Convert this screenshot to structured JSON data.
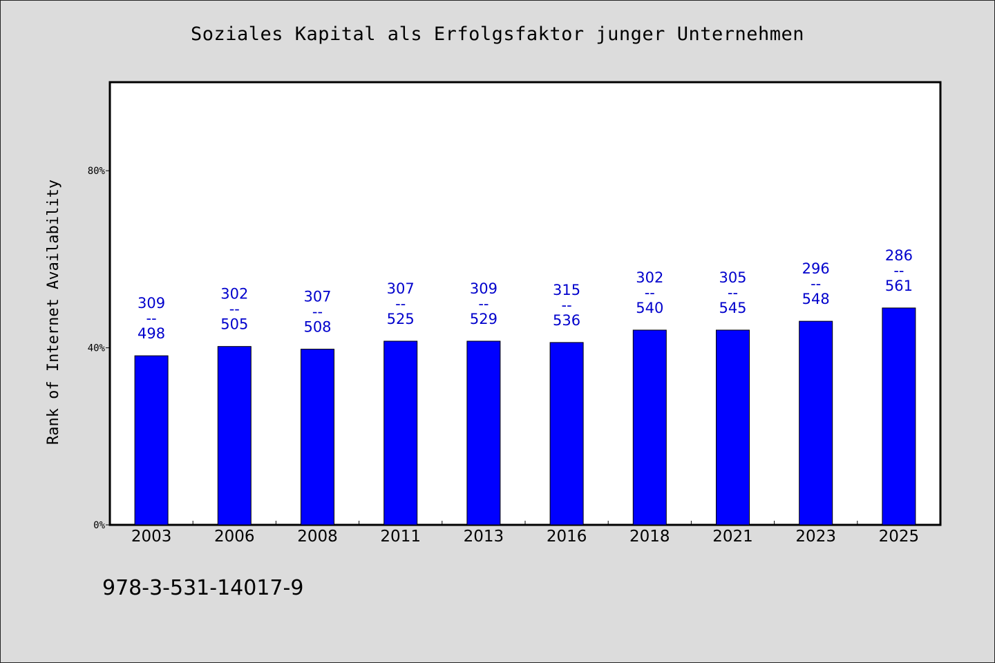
{
  "chart_data": {
    "type": "bar",
    "title": "Soziales Kapital als Erfolgsfaktor junger Unternehmen",
    "xlabel": "",
    "ylabel": "Rank of Internet Availability",
    "categories": [
      "2003",
      "2006",
      "2008",
      "2011",
      "2013",
      "2016",
      "2018",
      "2021",
      "2023",
      "2025"
    ],
    "series": [
      {
        "values": [
          38.2,
          40.3,
          39.7,
          41.5,
          41.5,
          41.2,
          44.0,
          44.0,
          46.0,
          49.0
        ]
      }
    ],
    "data_labels": [
      {
        "top": "309",
        "sep": "--",
        "bottom": "498"
      },
      {
        "top": "302",
        "sep": "--",
        "bottom": "505"
      },
      {
        "top": "307",
        "sep": "--",
        "bottom": "508"
      },
      {
        "top": "307",
        "sep": "--",
        "bottom": "525"
      },
      {
        "top": "309",
        "sep": "--",
        "bottom": "529"
      },
      {
        "top": "315",
        "sep": "--",
        "bottom": "536"
      },
      {
        "top": "302",
        "sep": "--",
        "bottom": "540"
      },
      {
        "top": "305",
        "sep": "--",
        "bottom": "545"
      },
      {
        "top": "296",
        "sep": "--",
        "bottom": "548"
      },
      {
        "top": "286",
        "sep": "--",
        "bottom": "561"
      }
    ],
    "yticks": [
      0,
      40,
      80
    ],
    "ytick_labels": [
      "0%",
      "40%",
      "80%"
    ],
    "ylim": [
      0,
      100
    ],
    "grid": false,
    "legend": "none",
    "colors": {
      "bar": "#0000ff",
      "data_label": "#0000cc"
    }
  },
  "footer": {
    "isbn": "978-3-531-14017-9"
  }
}
